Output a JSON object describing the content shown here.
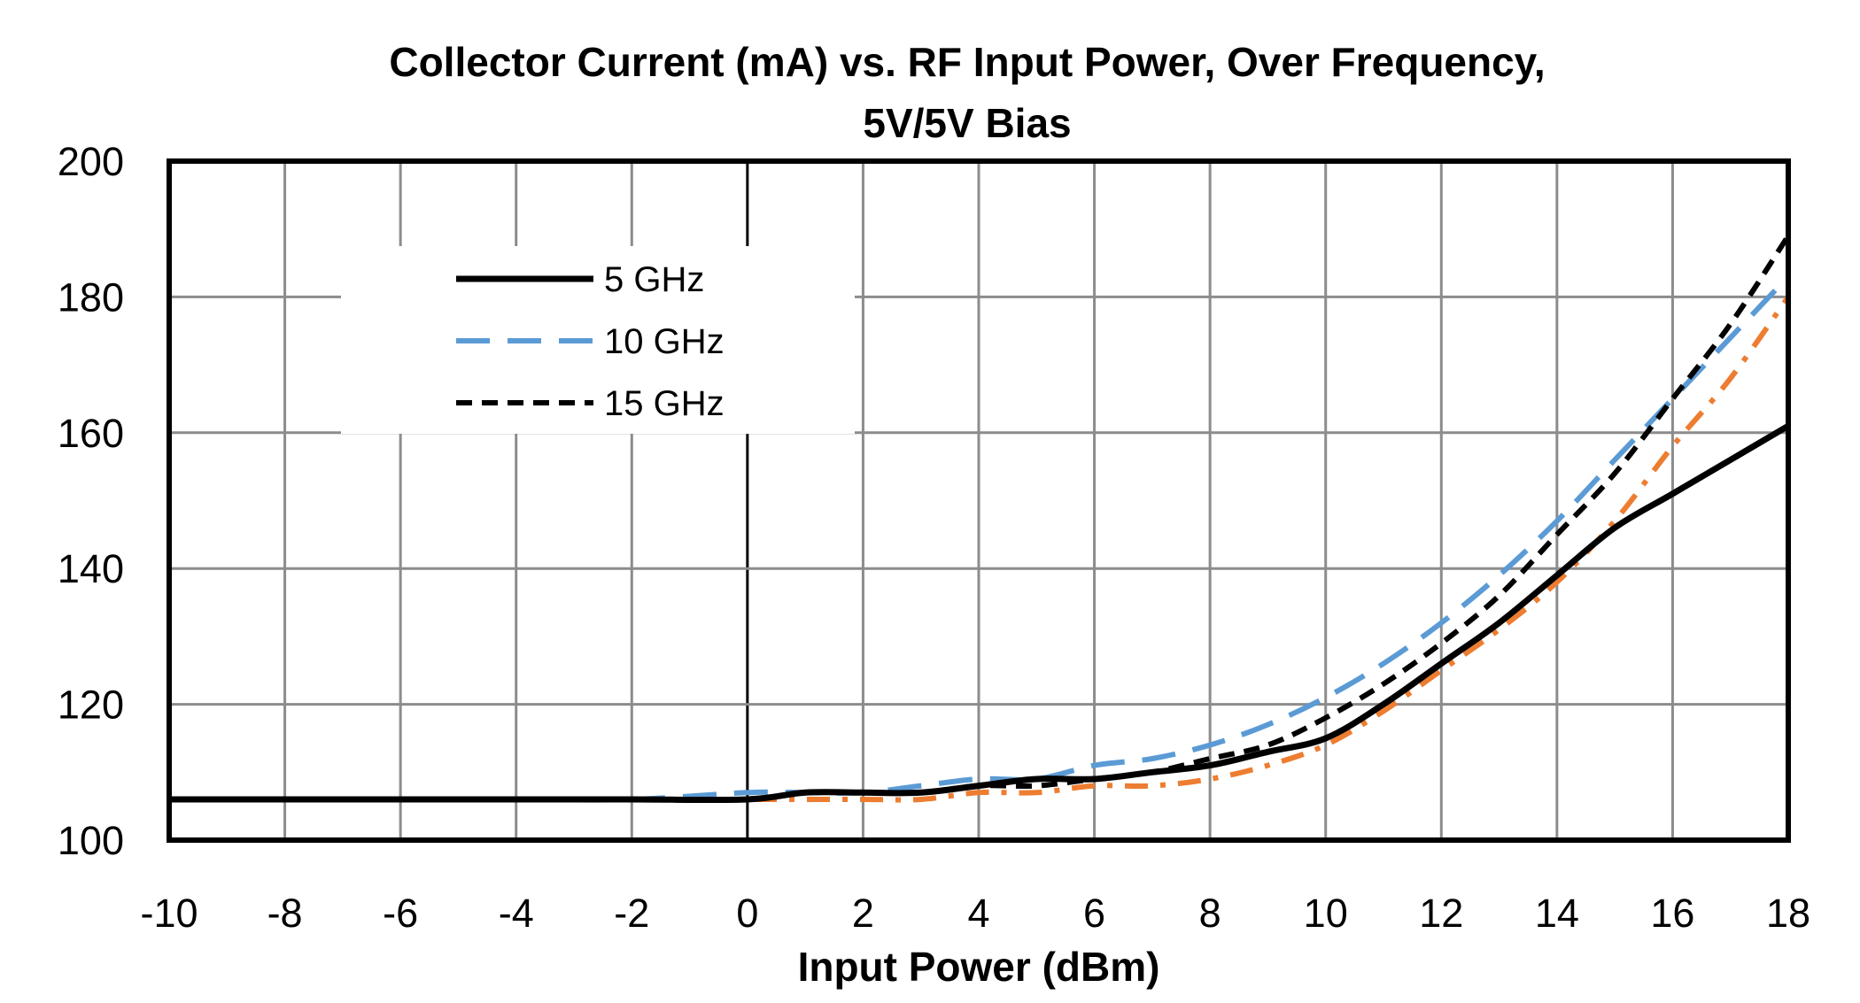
{
  "chart_data": {
    "type": "line",
    "title": "Collector Current (mA) vs. RF Input Power, Over Frequency,",
    "subtitle": "5V/5V Bias",
    "xlabel": "Input Power (dBm)",
    "ylabel": "",
    "xlim": [
      -10,
      18
    ],
    "ylim": [
      100,
      200
    ],
    "xticks": [
      "-10",
      "-8",
      "-6",
      "-4",
      "-2",
      "0",
      "2",
      "4",
      "6",
      "8",
      "10",
      "12",
      "14",
      "16",
      "18"
    ],
    "yticks": [
      "100",
      "120",
      "140",
      "160",
      "180",
      "200"
    ],
    "grid": true,
    "legend_position": "top-left",
    "series": [
      {
        "name": "5 GHz",
        "color": "#000000",
        "style": "solid",
        "x": [
          -10,
          -8,
          -6,
          -4,
          -2,
          0,
          1,
          2,
          3,
          4,
          5,
          6,
          7,
          8,
          9,
          10,
          11,
          12,
          13,
          14,
          15,
          16,
          17,
          18
        ],
        "y": [
          106,
          106,
          106,
          106,
          106,
          106,
          107,
          107,
          107,
          108,
          109,
          109,
          110,
          111,
          113,
          115,
          120,
          126,
          132,
          139,
          146,
          151,
          156,
          161
        ]
      },
      {
        "name": "10 GHz",
        "color": "#5B9BD5",
        "style": "dashed",
        "x": [
          -10,
          -8,
          -6,
          -4,
          -2,
          0,
          1,
          2,
          3,
          4,
          5,
          6,
          7,
          8,
          9,
          10,
          11,
          12,
          13,
          14,
          15,
          16,
          17,
          18
        ],
        "y": [
          106,
          106,
          106,
          106,
          106,
          107,
          107,
          107,
          108,
          109,
          109,
          111,
          112,
          114,
          117,
          121,
          126,
          132,
          139,
          147,
          156,
          165,
          174,
          183
        ]
      },
      {
        "name": "15 GHz",
        "color": "#000000",
        "style": "short-dash",
        "x": [
          -10,
          -8,
          -6,
          -4,
          -2,
          0,
          1,
          2,
          3,
          4,
          5,
          6,
          7,
          8,
          9,
          10,
          11,
          12,
          13,
          14,
          15,
          16,
          17,
          18
        ],
        "y": [
          106,
          106,
          106,
          106,
          106,
          106,
          107,
          107,
          107,
          108,
          108,
          109,
          110,
          112,
          114,
          118,
          123,
          129,
          136,
          145,
          154,
          165,
          176,
          189
        ]
      },
      {
        "name": "",
        "color": "#ED7D31",
        "style": "dash-dot",
        "x": [
          -10,
          -8,
          -6,
          -4,
          -2,
          0,
          1,
          2,
          3,
          4,
          5,
          6,
          7,
          8,
          9,
          10,
          11,
          12,
          13,
          14,
          15,
          16,
          17,
          18
        ],
        "y": [
          106,
          106,
          106,
          106,
          106,
          106,
          106,
          106,
          106,
          107,
          107,
          108,
          108,
          109,
          111,
          114,
          119,
          125,
          131,
          138,
          147,
          158,
          168,
          180
        ]
      }
    ]
  }
}
